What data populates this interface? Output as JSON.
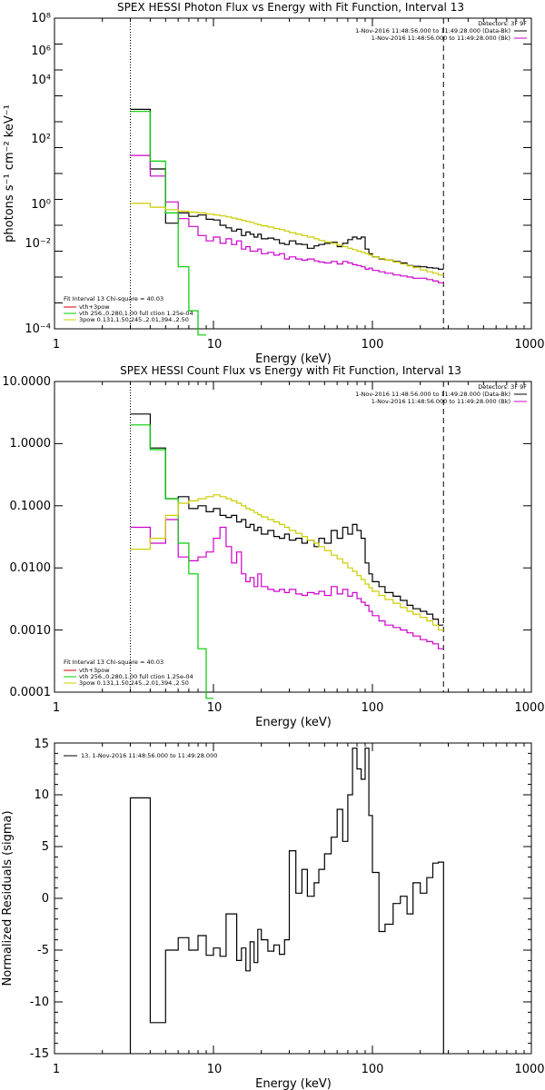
{
  "chart_data": [
    {
      "type": "line",
      "subtype": "histogram-step",
      "title": "SPEX HESSI Photon Flux vs Energy with Fit Function, Interval 13",
      "xlabel": "Energy (keV)",
      "ylabel": "photons s⁻¹ cm⁻² keV⁻¹",
      "xscale": "log",
      "yscale": "log",
      "xlim": [
        1,
        1000
      ],
      "ylim": [
        0.0001,
        100000000
      ],
      "x_ticks": [
        "1",
        "10",
        "100",
        "1000"
      ],
      "y_ticks": [
        "10⁻⁴",
        "10⁻²",
        "10⁰",
        "10²",
        "10⁴",
        "10⁶",
        "10⁸"
      ],
      "legend_top_right": {
        "detectors": "Detectors: 3F 9F",
        "lines": [
          {
            "text": "1-Nov-2016 11:48:56.000 to 11:49:28.000 (Data-Bk)",
            "color": "#000000"
          },
          {
            "text": "1-Nov-2016 11:48:56.000 to 11:49:28.000 (Bk)",
            "color": "#cc00cc"
          }
        ]
      },
      "legend_bottom_left": {
        "header": "Fit Interval 13   Chi-square = 40.03",
        "lines": [
          {
            "text": "vth+3pow",
            "color": "#cc0000"
          },
          {
            "text": "vth 256.,0.280,1.00  full ction 1.25e-04",
            "color": "#00cc00"
          },
          {
            "text": "3pow 0.131,1.50,245.,2.01,394.,2.50",
            "color": "#cccc00"
          }
        ]
      },
      "vlines": [
        {
          "x": 3,
          "style": "dotted"
        },
        {
          "x": 280,
          "style": "dashed"
        }
      ],
      "edges": [
        3,
        4,
        5,
        6,
        7,
        8,
        9,
        10,
        11,
        12,
        13,
        14,
        15,
        16,
        17,
        18,
        19,
        20,
        22,
        24,
        26,
        28,
        30,
        33,
        36,
        39,
        43,
        46,
        50,
        55,
        60,
        65,
        70,
        75,
        80,
        85,
        90,
        95,
        100,
        110,
        120,
        135,
        150,
        165,
        180,
        200,
        220,
        240,
        260,
        280
      ],
      "series": [
        {
          "color": "#000000",
          "values": [
            30000,
            150,
            1.2,
            3.0,
            2.2,
            2.5,
            1.7,
            1.6,
            1.0,
            0.8,
            0.6,
            0.7,
            0.4,
            0.55,
            0.45,
            0.35,
            0.45,
            0.3,
            0.32,
            0.28,
            0.2,
            0.18,
            0.25,
            0.19,
            0.18,
            0.13,
            0.16,
            0.18,
            0.2,
            0.22,
            0.15,
            0.2,
            0.28,
            0.35,
            0.3,
            0.35,
            0.12,
            0.08,
            0.06,
            0.05,
            0.045,
            0.04,
            0.035,
            0.028,
            0.026,
            0.025,
            0.023,
            0.022,
            0.02
          ]
        },
        {
          "color": "#cc00cc",
          "values": [
            500,
            80,
            8,
            1.8,
            0.9,
            0.4,
            0.25,
            0.35,
            0.2,
            0.3,
            0.18,
            0.25,
            0.12,
            0.15,
            0.1,
            0.1,
            0.12,
            0.08,
            0.09,
            0.07,
            0.08,
            0.05,
            0.06,
            0.05,
            0.045,
            0.05,
            0.042,
            0.038,
            0.035,
            0.04,
            0.032,
            0.04,
            0.035,
            0.03,
            0.028,
            0.025,
            0.02,
            0.022,
            0.018,
            0.016,
            0.014,
            0.012,
            0.011,
            0.01,
            0.009,
            0.009,
            0.008,
            0.007,
            0.006
          ]
        },
        {
          "color": "#00cc00",
          "values": [
            25000,
            300,
            3,
            0.025,
            0.0005,
            1e-05
          ]
        },
        {
          "color": "#cccc00",
          "values": [
            7,
            5,
            4,
            3.5,
            3.2,
            3.0,
            2.7,
            2.5,
            2.3,
            2.1,
            1.9,
            1.7,
            1.55,
            1.4,
            1.3,
            1.15,
            1.05,
            0.95,
            0.85,
            0.75,
            0.68,
            0.6,
            0.52,
            0.45,
            0.4,
            0.35,
            0.3,
            0.26,
            0.23,
            0.2,
            0.17,
            0.15,
            0.13,
            0.115,
            0.1,
            0.09,
            0.08,
            0.07,
            0.06,
            0.052,
            0.045,
            0.038,
            0.032,
            0.027,
            0.023,
            0.019,
            0.016,
            0.014,
            0.012
          ]
        }
      ]
    },
    {
      "type": "line",
      "subtype": "histogram-step",
      "title": "SPEX HESSI Count Flux vs Energy with Fit Function, Interval 13",
      "xlabel": "Energy (keV)",
      "ylabel": "",
      "xscale": "log",
      "yscale": "log",
      "xlim": [
        1,
        1000
      ],
      "ylim": [
        0.0001,
        10
      ],
      "x_ticks": [
        "1",
        "10",
        "100",
        "1000"
      ],
      "y_ticks": [
        "0.0001",
        "0.0010",
        "0.0100",
        "0.1000",
        "1.0000",
        "10.0000"
      ],
      "legend_top_right": {
        "detectors": "Detectors: 3F 9F",
        "lines": [
          {
            "text": "1-Nov-2016 11:48:56.000 to 11:49:28.000 (Data-Bk)",
            "color": "#000000"
          },
          {
            "text": "1-Nov-2016 11:48:56.000 to 11:49:28.000 (Bk)",
            "color": "#cc00cc"
          }
        ]
      },
      "legend_bottom_left": {
        "header": "Fit Interval 13   Chi-square = 40.03",
        "lines": [
          {
            "text": "vth+3pow",
            "color": "#cc0000"
          },
          {
            "text": "vth 256.,0.280,1.00  full ction 1.25e-04",
            "color": "#00cc00"
          },
          {
            "text": "3pow 0.131,1.50,245.,2.01,394.,2.50",
            "color": "#cccc00"
          }
        ]
      },
      "vlines": [
        {
          "x": 3,
          "style": "dotted"
        },
        {
          "x": 280,
          "style": "dashed"
        }
      ],
      "edges": [
        3,
        4,
        5,
        6,
        7,
        8,
        9,
        10,
        11,
        12,
        13,
        14,
        15,
        16,
        17,
        18,
        19,
        20,
        22,
        24,
        26,
        28,
        30,
        33,
        36,
        39,
        43,
        46,
        50,
        55,
        60,
        65,
        70,
        75,
        80,
        85,
        90,
        95,
        100,
        110,
        120,
        135,
        150,
        165,
        180,
        200,
        220,
        240,
        260,
        280
      ],
      "series": [
        {
          "color": "#000000",
          "values": [
            3.0,
            0.85,
            0.13,
            0.14,
            0.09,
            0.1,
            0.08,
            0.09,
            0.07,
            0.065,
            0.07,
            0.055,
            0.06,
            0.045,
            0.05,
            0.04,
            0.045,
            0.035,
            0.04,
            0.032,
            0.03,
            0.035,
            0.028,
            0.03,
            0.025,
            0.028,
            0.022,
            0.03,
            0.025,
            0.04,
            0.03,
            0.045,
            0.035,
            0.05,
            0.04,
            0.03,
            0.012,
            0.008,
            0.006,
            0.005,
            0.004,
            0.0035,
            0.003,
            0.0025,
            0.0022,
            0.002,
            0.0018,
            0.0015,
            0.0012
          ]
        },
        {
          "color": "#cc00cc",
          "values": [
            0.045,
            0.025,
            0.06,
            0.015,
            0.013,
            0.015,
            0.018,
            0.03,
            0.045,
            0.022,
            0.012,
            0.018,
            0.008,
            0.006,
            0.007,
            0.005,
            0.008,
            0.005,
            0.0045,
            0.0042,
            0.0045,
            0.004,
            0.0045,
            0.0038,
            0.0036,
            0.004,
            0.0038,
            0.0042,
            0.0036,
            0.005,
            0.0038,
            0.0045,
            0.0035,
            0.004,
            0.0032,
            0.0028,
            0.0025,
            0.002,
            0.0017,
            0.0014,
            0.0012,
            0.0011,
            0.001,
            0.0009,
            0.0008,
            0.0007,
            0.00065,
            0.0006,
            0.0005
          ]
        },
        {
          "color": "#00cc00",
          "values": [
            2.0,
            0.8,
            0.13,
            0.025,
            0.008,
            0.0005,
            1e-06
          ]
        },
        {
          "color": "#cccc00",
          "values": [
            0.02,
            0.03,
            0.07,
            0.11,
            0.12,
            0.13,
            0.14,
            0.15,
            0.14,
            0.13,
            0.12,
            0.11,
            0.1,
            0.09,
            0.085,
            0.078,
            0.072,
            0.066,
            0.06,
            0.055,
            0.05,
            0.045,
            0.04,
            0.036,
            0.032,
            0.028,
            0.025,
            0.022,
            0.019,
            0.016,
            0.014,
            0.012,
            0.01,
            0.0088,
            0.0075,
            0.0065,
            0.0055,
            0.0048,
            0.0042,
            0.0036,
            0.0031,
            0.0027,
            0.0023,
            0.002,
            0.0018,
            0.0016,
            0.0014,
            0.0012,
            0.001
          ]
        }
      ]
    },
    {
      "type": "line",
      "subtype": "histogram-step",
      "title": "",
      "xlabel": "Energy (keV)",
      "ylabel": "Normalized Residuals (sigma)",
      "xscale": "log",
      "yscale": "linear",
      "xlim": [
        1,
        1000
      ],
      "ylim": [
        -15,
        15
      ],
      "x_ticks": [
        "1",
        "10",
        "100",
        "1000"
      ],
      "y_ticks": [
        "-15",
        "-10",
        "-5",
        "0",
        "5",
        "10",
        "15"
      ],
      "legend_top_left": {
        "lines": [
          {
            "text": "13.  1-Nov-2016 11:48:56.000 to 11:49:28.000",
            "color": "#000000"
          }
        ]
      },
      "edges": [
        3,
        4,
        5,
        6,
        7,
        8,
        9,
        10,
        11,
        12,
        13,
        14,
        15,
        16,
        17,
        18,
        19,
        20,
        22,
        24,
        26,
        28,
        30,
        33,
        36,
        39,
        43,
        46,
        50,
        55,
        60,
        65,
        70,
        75,
        80,
        85,
        90,
        95,
        100,
        110,
        120,
        135,
        150,
        165,
        180,
        200,
        220,
        240,
        260,
        280
      ],
      "series": [
        {
          "color": "#000000",
          "values": [
            9.7,
            -12.0,
            -5.0,
            -3.8,
            -5.0,
            -3.6,
            -5.5,
            -4.8,
            -5.6,
            -1.5,
            -1.5,
            -6.0,
            -4.8,
            -7.0,
            -4.2,
            -6.2,
            -3.0,
            -4.0,
            -5.1,
            -4.5,
            -5.4,
            -4.0,
            4.6,
            0.5,
            2.8,
            0.2,
            1.5,
            2.8,
            4.3,
            5.9,
            8.6,
            5.5,
            10.0,
            14.5,
            12.5,
            11.5,
            14.5,
            8.0,
            2.5,
            -3.2,
            -2.5,
            -0.5,
            0.2,
            -1.5,
            1.5,
            0.5,
            2.0,
            3.4,
            3.5
          ]
        }
      ]
    }
  ]
}
